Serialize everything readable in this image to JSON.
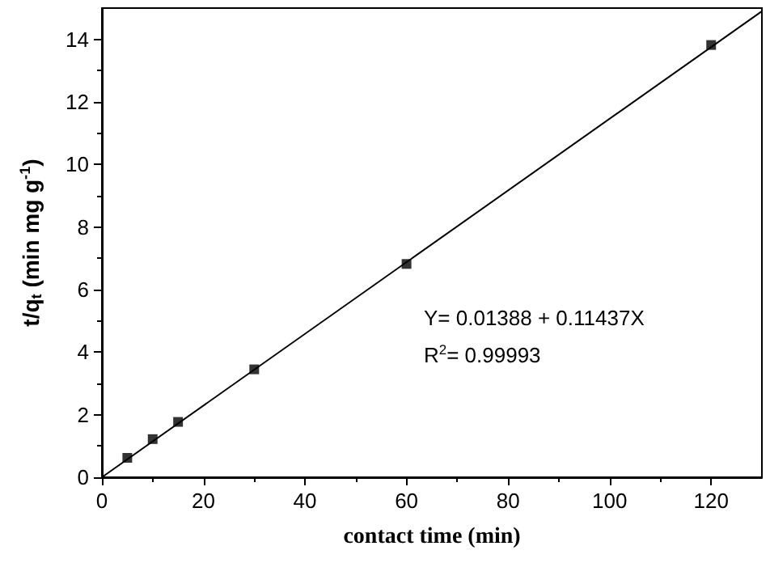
{
  "chart_data": {
    "type": "scatter",
    "xlabel": "contact time (min)",
    "ylabel": "t/q$_{t}$ (min mg g$^{-1}$)",
    "x": [
      5,
      10,
      15,
      30,
      60,
      120
    ],
    "series": [
      {
        "color": "#000000",
        "marker": "square",
        "values": [
          0.62,
          1.22,
          1.77,
          3.45,
          6.82,
          13.82
        ]
      },
      {
        "type": "line",
        "color": "#000000",
        "marker": "none",
        "line_style": "solid",
        "x": [
          0,
          130
        ],
        "values": [
          0,
          14.9
        ]
      }
    ],
    "annotations": [
      "Y= 0.01388 + 0.11437X",
      "R$^{2}$= 0.99993"
    ],
    "xlim": [
      0,
      130
    ],
    "ylim": [
      0,
      15
    ],
    "xticks": [
      0,
      20,
      40,
      60,
      80,
      100,
      120
    ],
    "yticks": [
      0,
      2,
      4,
      6,
      8,
      10,
      12,
      14
    ],
    "grid": false
  }
}
